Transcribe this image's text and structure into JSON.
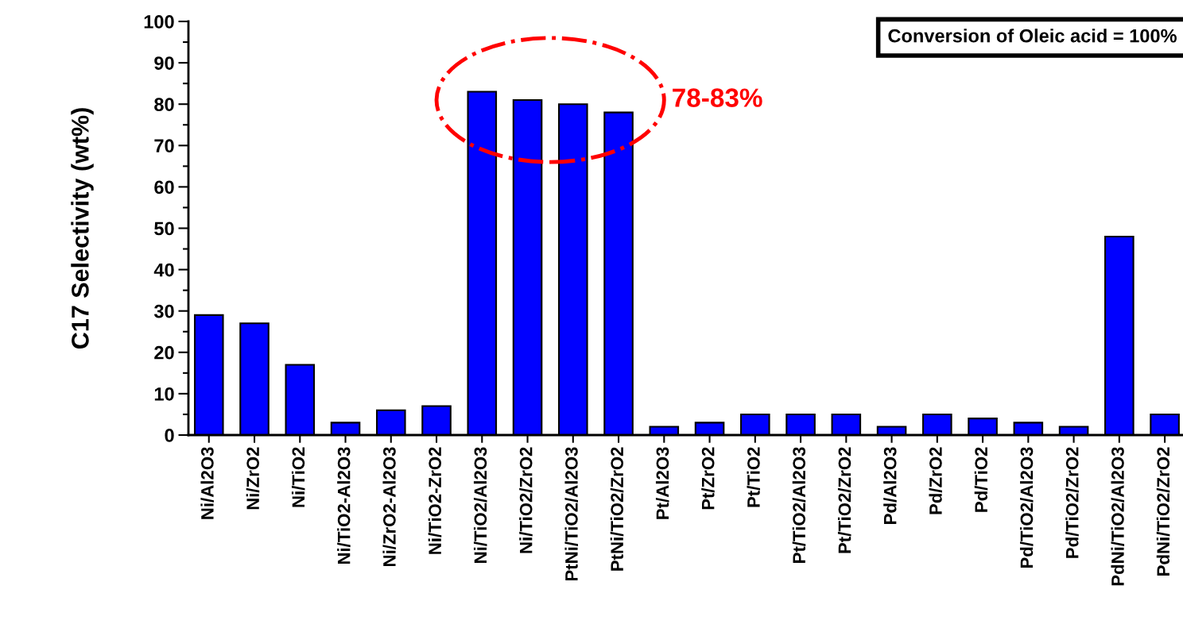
{
  "chart_data": {
    "type": "bar",
    "ylabel": "C17 Selectivity (wt%)",
    "categories": [
      "Ni/Al2O3",
      "Ni/ZrO2",
      "Ni/TiO2",
      "Ni/TiO2-Al2O3",
      "Ni/ZrO2-Al2O3",
      "Ni/TiO2-ZrO2",
      "Ni/TiO2/Al2O3",
      "Ni/TiO2/ZrO2",
      "PtNi/TiO2/Al2O3",
      "PtNi/TiO2/ZrO2",
      "Pt/Al2O3",
      "Pt/ZrO2",
      "Pt/TiO2",
      "Pt/TiO2/Al2O3",
      "Pt/TiO2/ZrO2",
      "Pd/Al2O3",
      "Pd/ZrO2",
      "Pd/TiO2",
      "Pd/TiO2/Al2O3",
      "Pd/TiO2/ZrO2",
      "PdNi/TiO2/Al2O3",
      "PdNi/TiO2/ZrO2"
    ],
    "values": [
      29,
      27,
      17,
      3,
      6,
      7,
      83,
      81,
      80,
      78,
      2,
      3,
      5,
      5,
      5,
      2,
      5,
      4,
      3,
      2,
      48,
      5
    ],
    "color": "#0000ff",
    "ylim": [
      0,
      100
    ],
    "yticks": [
      0,
      10,
      20,
      30,
      40,
      50,
      60,
      70,
      80,
      90,
      100
    ],
    "grid": false,
    "annotations": [
      "Conversion of Oleic acid = 100%",
      "78-83%"
    ]
  }
}
